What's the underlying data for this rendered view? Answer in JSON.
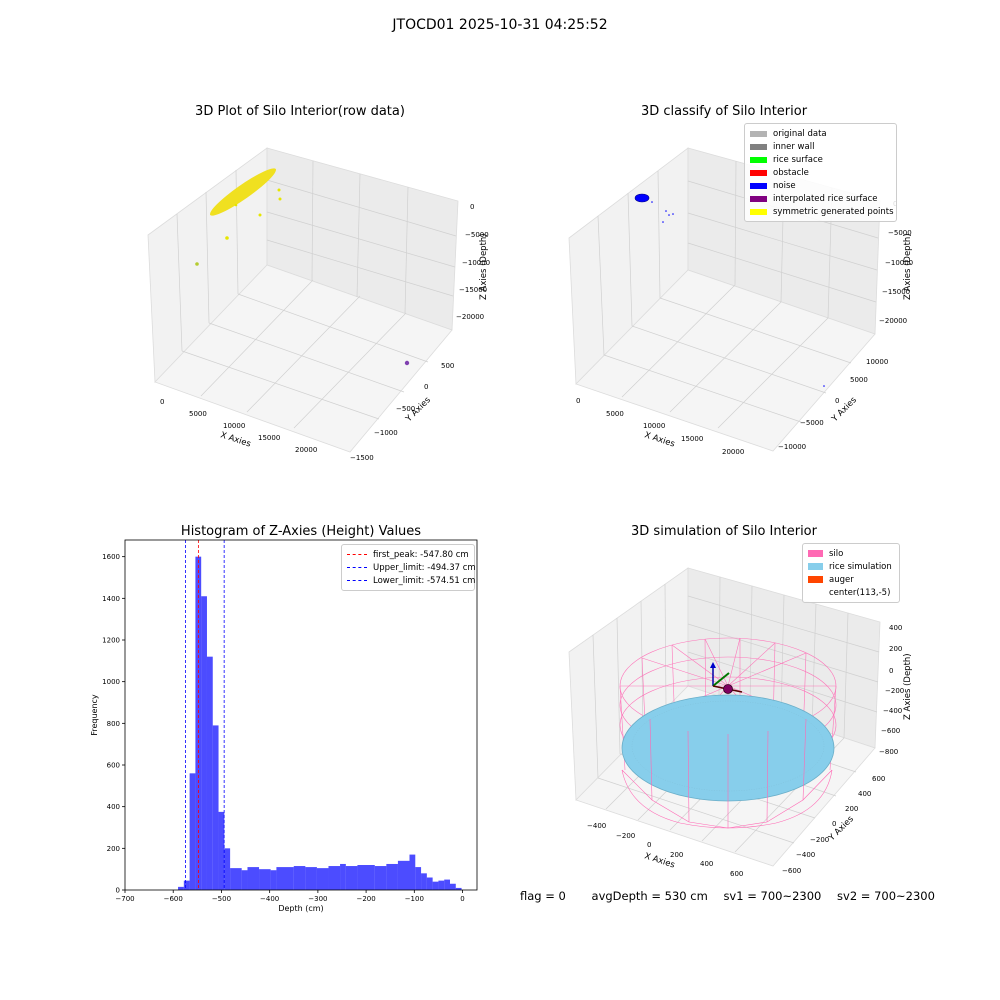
{
  "suptitle": "JTOCD01 2025-10-31 04:25:52",
  "panels": {
    "raw": {
      "title": "3D Plot of Silo Interior(row data)",
      "xlabel": "X Axies",
      "ylabel": "Y Axies",
      "zlabel": "Z Axies (Depth)",
      "xticks": [
        "0",
        "5000",
        "10000",
        "15000",
        "20000"
      ],
      "yticks": [
        "500",
        "0",
        "−500",
        "−1000",
        "−1500"
      ],
      "zticks": [
        "0",
        "−5000",
        "−10000",
        "−15000",
        "−20000"
      ]
    },
    "classify": {
      "title": "3D classify of Silo Interior",
      "xlabel": "X Axies",
      "ylabel": "Y Axies",
      "zlabel": "Z Axies (Depth)",
      "xticks": [
        "0",
        "5000",
        "10000",
        "15000",
        "20000"
      ],
      "yticks": [
        "10000",
        "5000",
        "0",
        "−5000",
        "−10000"
      ],
      "zticks": [
        "0",
        "−5000",
        "−10000",
        "−15000",
        "−20000"
      ],
      "legend": [
        {
          "label": "original data",
          "color": "#b3b3b3"
        },
        {
          "label": "inner wall",
          "color": "#808080"
        },
        {
          "label": "rice surface",
          "color": "#00ff00"
        },
        {
          "label": "obstacle",
          "color": "#ff0000"
        },
        {
          "label": "noise",
          "color": "#0000ff"
        },
        {
          "label": "interpolated rice surface",
          "color": "#800080"
        },
        {
          "label": "symmetric generated points",
          "color": "#ffff00"
        }
      ]
    },
    "simulation": {
      "title": "3D simulation of Silo Interior",
      "xlabel": "X Axies",
      "ylabel": "Y Axies",
      "zlabel": "Z Axies (Depth)",
      "xticks": [
        "−400",
        "−200",
        "0",
        "200",
        "400",
        "600"
      ],
      "yticks": [
        "600",
        "400",
        "200",
        "0",
        "−200",
        "−400",
        "−600"
      ],
      "zticks": [
        "400",
        "200",
        "0",
        "−200",
        "−400",
        "−600",
        "−800"
      ],
      "legend": [
        {
          "label": "silo",
          "color": "#ff69b4"
        },
        {
          "label": "rice simulation",
          "color": "#87ceeb"
        },
        {
          "label": "auger",
          "color": "#ff4500"
        },
        {
          "label": "center(113,-5)",
          "color": ""
        }
      ]
    }
  },
  "chart_data": {
    "type": "bar",
    "title": "Histogram of Z-Axies (Height) Values",
    "xlabel": "Depth (cm)",
    "ylabel": "Frequency",
    "xlim": [
      -700,
      30
    ],
    "ylim": [
      0,
      1680
    ],
    "xticks": [
      -700,
      -600,
      -500,
      -400,
      -300,
      -200,
      -100,
      0
    ],
    "yticks": [
      0,
      200,
      400,
      600,
      800,
      1000,
      1200,
      1400,
      1600
    ],
    "bar_color": "#0000ff",
    "bins": [
      {
        "x0": -590,
        "x1": -578,
        "v": 15
      },
      {
        "x0": -578,
        "x1": -566,
        "v": 45
      },
      {
        "x0": -566,
        "x1": -554,
        "v": 560
      },
      {
        "x0": -554,
        "x1": -542,
        "v": 1600
      },
      {
        "x0": -542,
        "x1": -530,
        "v": 1410
      },
      {
        "x0": -530,
        "x1": -518,
        "v": 1120
      },
      {
        "x0": -518,
        "x1": -506,
        "v": 790
      },
      {
        "x0": -506,
        "x1": -494,
        "v": 375
      },
      {
        "x0": -494,
        "x1": -482,
        "v": 200
      },
      {
        "x0": -482,
        "x1": -458,
        "v": 105
      },
      {
        "x0": -458,
        "x1": -446,
        "v": 95
      },
      {
        "x0": -446,
        "x1": -422,
        "v": 110
      },
      {
        "x0": -422,
        "x1": -398,
        "v": 100
      },
      {
        "x0": -398,
        "x1": -386,
        "v": 95
      },
      {
        "x0": -386,
        "x1": -350,
        "v": 110
      },
      {
        "x0": -350,
        "x1": -326,
        "v": 115
      },
      {
        "x0": -326,
        "x1": -302,
        "v": 110
      },
      {
        "x0": -302,
        "x1": -278,
        "v": 105
      },
      {
        "x0": -278,
        "x1": -254,
        "v": 115
      },
      {
        "x0": -254,
        "x1": -242,
        "v": 125
      },
      {
        "x0": -242,
        "x1": -218,
        "v": 115
      },
      {
        "x0": -218,
        "x1": -182,
        "v": 120
      },
      {
        "x0": -182,
        "x1": -158,
        "v": 115
      },
      {
        "x0": -158,
        "x1": -134,
        "v": 125
      },
      {
        "x0": -134,
        "x1": -110,
        "v": 140
      },
      {
        "x0": -110,
        "x1": -98,
        "v": 170
      },
      {
        "x0": -98,
        "x1": -86,
        "v": 110
      },
      {
        "x0": -86,
        "x1": -74,
        "v": 80
      },
      {
        "x0": -74,
        "x1": -62,
        "v": 60
      },
      {
        "x0": -62,
        "x1": -50,
        "v": 40
      },
      {
        "x0": -50,
        "x1": -38,
        "v": 45
      },
      {
        "x0": -38,
        "x1": -26,
        "v": 50
      },
      {
        "x0": -26,
        "x1": -14,
        "v": 30
      },
      {
        "x0": -14,
        "x1": -2,
        "v": 10
      }
    ],
    "lines": [
      {
        "x": -547.8,
        "color": "#ff0000",
        "label": "first_peak: -547.80 cm"
      },
      {
        "x": -494.37,
        "color": "#0000ff",
        "label": "Upper_limit: -494.37 cm"
      },
      {
        "x": -574.51,
        "color": "#0000ff",
        "label": "Lower_limit: -574.51 cm"
      }
    ],
    "legend_position": "upper right"
  },
  "footer": {
    "flag": "flag = 0",
    "avg": "avgDepth = 530 cm",
    "sv1": "sv1 = 700~2300",
    "sv2": "sv2 = 700~2300"
  }
}
